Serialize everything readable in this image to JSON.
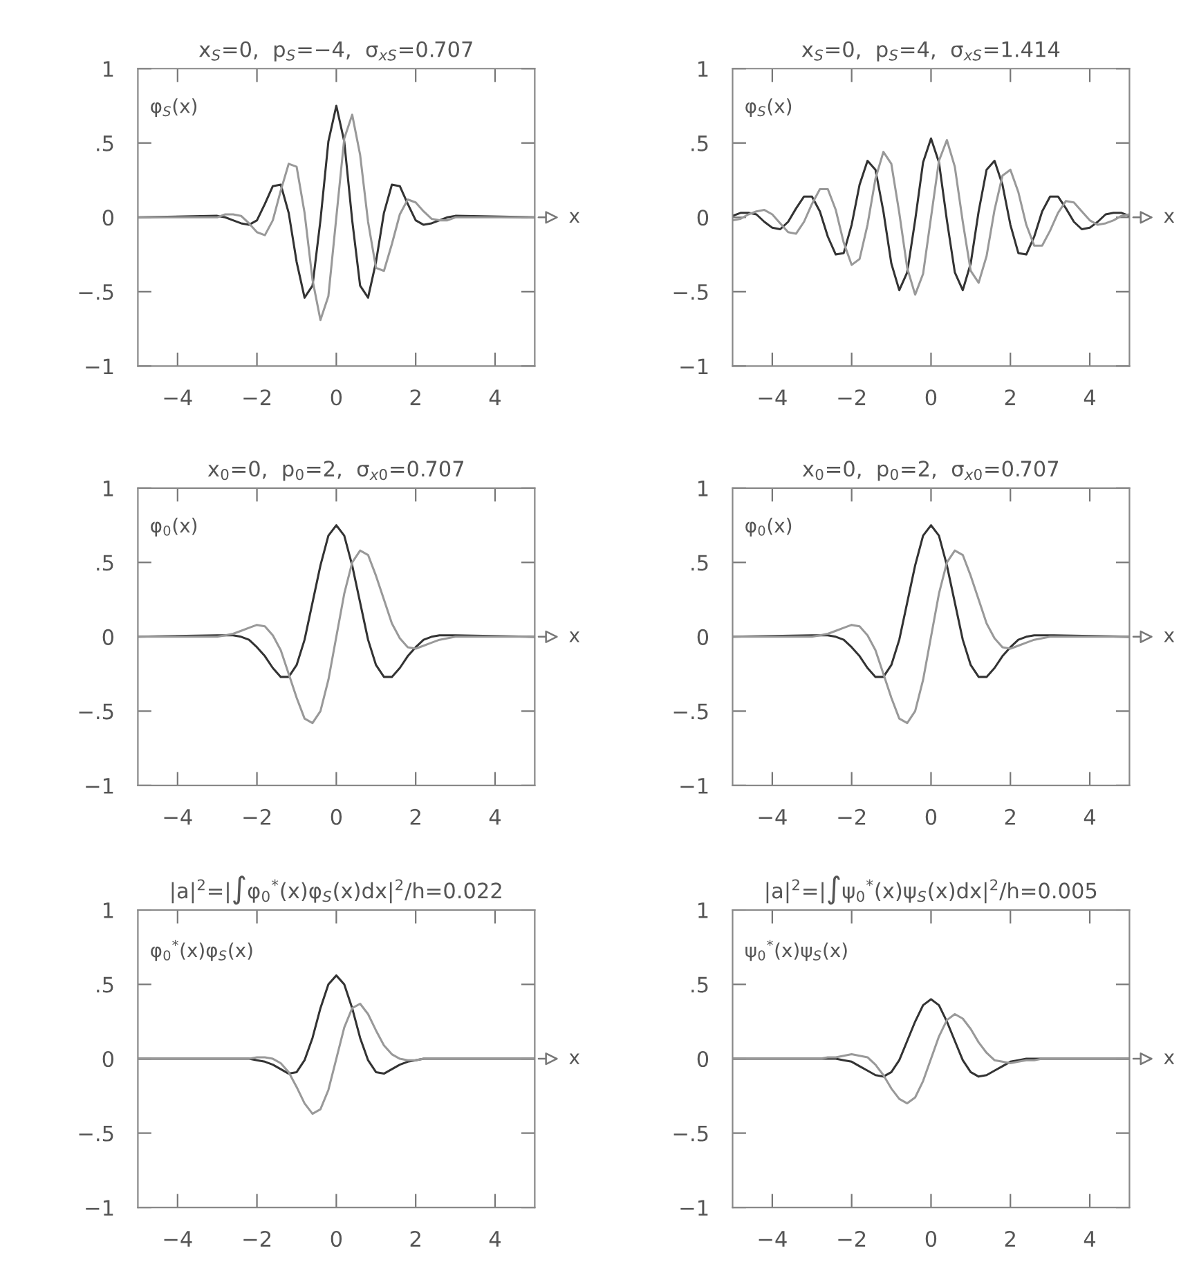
{
  "chart_data": [
    {
      "type": "line",
      "title": "x$_{S}$=0,  p$_{S}$=−4,  σ$_{xS}$=0.707",
      "xlabel": "x",
      "annotations": [
        "φ$_{S}$(x)"
      ],
      "xlim": [
        -5,
        5
      ],
      "ylim": [
        -1,
        1
      ],
      "xticks": [
        -4,
        -2,
        0,
        2,
        4
      ],
      "yticks": [
        {
          "value": -1,
          "label": "−1"
        },
        {
          "value": -0.5,
          "label": "−.5"
        },
        0,
        {
          "value": 0.5,
          "label": ".5"
        },
        1
      ],
      "x": [
        -5,
        -3,
        -2.8,
        -2.6,
        -2.4,
        -2.2,
        -2,
        -1.8,
        -1.6,
        -1.4,
        -1.2,
        -1,
        -0.8,
        -0.6,
        -0.4,
        -0.2,
        0,
        0.2,
        0.4,
        0.6,
        0.8,
        1,
        1.2,
        1.4,
        1.6,
        1.8,
        2,
        2.2,
        2.4,
        2.6,
        2.8,
        3,
        5
      ],
      "series": [
        {
          "color": "#333333",
          "values": [
            0,
            0.01,
            0,
            -0.02,
            -0.04,
            -0.05,
            -0.02,
            0.09,
            0.21,
            0.22,
            0.03,
            -0.3,
            -0.54,
            -0.46,
            -0.02,
            0.51,
            0.75,
            0.51,
            -0.02,
            -0.46,
            -0.54,
            -0.3,
            0.03,
            0.22,
            0.21,
            0.09,
            -0.02,
            -0.05,
            -0.04,
            -0.02,
            0,
            0.01,
            0
          ]
        },
        {
          "color": "#999999",
          "values": [
            0,
            0,
            0.02,
            0.02,
            0.01,
            -0.04,
            -0.1,
            -0.12,
            -0.02,
            0.18,
            0.36,
            0.34,
            0.03,
            -0.42,
            -0.69,
            -0.53,
            0,
            0.53,
            0.69,
            0.42,
            -0.03,
            -0.34,
            -0.36,
            -0.18,
            0.02,
            0.12,
            0.1,
            0.04,
            -0.01,
            -0.02,
            -0.02,
            0,
            0
          ]
        }
      ]
    },
    {
      "type": "line",
      "title": "x$_{S}$=0,  p$_{S}$=4,  σ$_{xS}$=1.414",
      "xlabel": "x",
      "annotations": [
        "φ$_{S}$(x)"
      ],
      "xlim": [
        -5,
        5
      ],
      "ylim": [
        -1,
        1
      ],
      "xticks": [
        -4,
        -2,
        0,
        2,
        4
      ],
      "yticks": [
        {
          "value": -1,
          "label": "−1"
        },
        {
          "value": -0.5,
          "label": "−.5"
        },
        0,
        {
          "value": 0.5,
          "label": ".5"
        },
        1
      ],
      "x": [
        -5,
        -4.8,
        -4.6,
        -4.4,
        -4.2,
        -4,
        -3.8,
        -3.6,
        -3.4,
        -3.2,
        -3,
        -2.8,
        -2.6,
        -2.4,
        -2.2,
        -2,
        -1.8,
        -1.6,
        -1.4,
        -1.2,
        -1,
        -0.8,
        -0.6,
        -0.4,
        -0.2,
        0,
        0.2,
        0.4,
        0.6,
        0.8,
        1,
        1.2,
        1.4,
        1.6,
        1.8,
        2,
        2.2,
        2.4,
        2.6,
        2.8,
        3,
        3.2,
        3.4,
        3.6,
        3.8,
        4,
        4.2,
        4.4,
        4.6,
        4.8,
        5
      ],
      "series": [
        {
          "color": "#333333",
          "values": [
            0.01,
            0.03,
            0.03,
            0.02,
            -0.03,
            -0.07,
            -0.08,
            -0.03,
            0.06,
            0.14,
            0.14,
            0.04,
            -0.13,
            -0.25,
            -0.24,
            -0.05,
            0.22,
            0.38,
            0.32,
            0.04,
            -0.31,
            -0.49,
            -0.37,
            -0.02,
            0.37,
            0.53,
            0.37,
            -0.02,
            -0.37,
            -0.49,
            -0.31,
            0.04,
            0.32,
            0.38,
            0.22,
            -0.05,
            -0.24,
            -0.25,
            -0.13,
            0.04,
            0.14,
            0.14,
            0.06,
            -0.03,
            -0.08,
            -0.07,
            -0.03,
            0.02,
            0.03,
            0.03,
            0.01
          ]
        },
        {
          "color": "#999999",
          "values": [
            -0.02,
            -0.01,
            0.02,
            0.04,
            0.05,
            0.02,
            -0.04,
            -0.1,
            -0.11,
            -0.03,
            0.09,
            0.19,
            0.19,
            0.05,
            -0.17,
            -0.32,
            -0.28,
            -0.05,
            0.26,
            0.44,
            0.36,
            0.03,
            -0.34,
            -0.52,
            -0.38,
            0,
            0.38,
            0.52,
            0.34,
            -0.03,
            -0.36,
            -0.44,
            -0.26,
            0.05,
            0.28,
            0.32,
            0.17,
            -0.05,
            -0.19,
            -0.19,
            -0.09,
            0.03,
            0.11,
            0.1,
            0.04,
            -0.02,
            -0.05,
            -0.04,
            -0.02,
            0.01,
            0.02
          ]
        }
      ]
    },
    {
      "type": "line",
      "title": "x$_{0}$=0,  p$_{0}$=2,  σ$_{x0}$=0.707",
      "xlabel": "x",
      "annotations": [
        "φ$_{0}$(x)"
      ],
      "xlim": [
        -5,
        5
      ],
      "ylim": [
        -1,
        1
      ],
      "xticks": [
        -4,
        -2,
        0,
        2,
        4
      ],
      "yticks": [
        {
          "value": -1,
          "label": "−1"
        },
        {
          "value": -0.5,
          "label": "−.5"
        },
        0,
        {
          "value": 0.5,
          "label": ".5"
        },
        1
      ],
      "x": [
        -5,
        -3,
        -2.8,
        -2.6,
        -2.4,
        -2.2,
        -2,
        -1.8,
        -1.6,
        -1.4,
        -1.2,
        -1,
        -0.8,
        -0.6,
        -0.4,
        -0.2,
        0,
        0.2,
        0.4,
        0.6,
        0.8,
        1,
        1.2,
        1.4,
        1.6,
        1.8,
        2,
        2.2,
        2.4,
        2.6,
        2.8,
        3,
        5
      ],
      "series": [
        {
          "color": "#333333",
          "values": [
            0,
            0.01,
            0.01,
            0.01,
            0,
            -0.02,
            -0.07,
            -0.13,
            -0.21,
            -0.27,
            -0.27,
            -0.19,
            -0.02,
            0.23,
            0.48,
            0.68,
            0.75,
            0.68,
            0.48,
            0.23,
            -0.02,
            -0.19,
            -0.27,
            -0.27,
            -0.21,
            -0.13,
            -0.07,
            -0.02,
            0,
            0.01,
            0.01,
            0.01,
            0
          ]
        },
        {
          "color": "#999999",
          "values": [
            0,
            0,
            0.01,
            0.02,
            0.04,
            0.06,
            0.08,
            0.07,
            0.01,
            -0.09,
            -0.25,
            -0.41,
            -0.55,
            -0.58,
            -0.5,
            -0.29,
            0,
            0.29,
            0.5,
            0.58,
            0.55,
            0.41,
            0.25,
            0.09,
            -0.01,
            -0.07,
            -0.08,
            -0.06,
            -0.04,
            -0.02,
            -0.01,
            0,
            0
          ]
        }
      ]
    },
    {
      "type": "line",
      "title": "x$_{0}$=0,  p$_{0}$=2,  σ$_{x0}$=0.707",
      "xlabel": "x",
      "annotations": [
        "φ$_{0}$(x)"
      ],
      "xlim": [
        -5,
        5
      ],
      "ylim": [
        -1,
        1
      ],
      "xticks": [
        -4,
        -2,
        0,
        2,
        4
      ],
      "yticks": [
        {
          "value": -1,
          "label": "−1"
        },
        {
          "value": -0.5,
          "label": "−.5"
        },
        0,
        {
          "value": 0.5,
          "label": ".5"
        },
        1
      ],
      "x": [
        -5,
        -3,
        -2.8,
        -2.6,
        -2.4,
        -2.2,
        -2,
        -1.8,
        -1.6,
        -1.4,
        -1.2,
        -1,
        -0.8,
        -0.6,
        -0.4,
        -0.2,
        0,
        0.2,
        0.4,
        0.6,
        0.8,
        1,
        1.2,
        1.4,
        1.6,
        1.8,
        2,
        2.2,
        2.4,
        2.6,
        2.8,
        3,
        5
      ],
      "series": [
        {
          "color": "#333333",
          "values": [
            0,
            0.01,
            0.01,
            0.01,
            0,
            -0.02,
            -0.07,
            -0.13,
            -0.21,
            -0.27,
            -0.27,
            -0.19,
            -0.02,
            0.23,
            0.48,
            0.68,
            0.75,
            0.68,
            0.48,
            0.23,
            -0.02,
            -0.19,
            -0.27,
            -0.27,
            -0.21,
            -0.13,
            -0.07,
            -0.02,
            0,
            0.01,
            0.01,
            0.01,
            0
          ]
        },
        {
          "color": "#999999",
          "values": [
            0,
            0,
            0.01,
            0.02,
            0.04,
            0.06,
            0.08,
            0.07,
            0.01,
            -0.09,
            -0.25,
            -0.41,
            -0.55,
            -0.58,
            -0.5,
            -0.29,
            0,
            0.29,
            0.5,
            0.58,
            0.55,
            0.41,
            0.25,
            0.09,
            -0.01,
            -0.07,
            -0.08,
            -0.06,
            -0.04,
            -0.02,
            -0.01,
            0,
            0
          ]
        }
      ]
    },
    {
      "type": "line",
      "title": "|a|$^{2}$=|∫φ$_{0}$$^{*}$(x)φ$_{S}$(x)dx|$^{2}$/h=0.022",
      "xlabel": "x",
      "annotations": [
        "φ$_{0}$$^{*}$(x)φ$_{S}$(x)"
      ],
      "xlim": [
        -5,
        5
      ],
      "ylim": [
        -1,
        1
      ],
      "xticks": [
        -4,
        -2,
        0,
        2,
        4
      ],
      "yticks": [
        {
          "value": -1,
          "label": "−1"
        },
        {
          "value": -0.5,
          "label": "−.5"
        },
        0,
        {
          "value": 0.5,
          "label": ".5"
        },
        1
      ],
      "x": [
        -5,
        -3,
        -2.8,
        -2.6,
        -2.4,
        -2.2,
        -2,
        -1.8,
        -1.6,
        -1.4,
        -1.2,
        -1,
        -0.8,
        -0.6,
        -0.4,
        -0.2,
        0,
        0.2,
        0.4,
        0.6,
        0.8,
        1,
        1.2,
        1.4,
        1.6,
        1.8,
        2,
        2.2,
        2.4,
        2.6,
        2.8,
        3,
        5
      ],
      "series": [
        {
          "color": "#333333",
          "values": [
            0,
            0,
            0,
            0,
            0,
            0,
            -0.01,
            -0.02,
            -0.04,
            -0.07,
            -0.1,
            -0.09,
            -0.01,
            0.14,
            0.34,
            0.5,
            0.56,
            0.5,
            0.34,
            0.14,
            -0.01,
            -0.09,
            -0.1,
            -0.07,
            -0.04,
            -0.02,
            -0.01,
            0,
            0,
            0,
            0,
            0,
            0
          ]
        },
        {
          "color": "#999999",
          "values": [
            0,
            0,
            0,
            0,
            0,
            0,
            0.01,
            0.01,
            0,
            -0.03,
            -0.09,
            -0.19,
            -0.3,
            -0.37,
            -0.34,
            -0.21,
            0,
            0.21,
            0.34,
            0.37,
            0.3,
            0.19,
            0.09,
            0.03,
            0,
            -0.01,
            -0.01,
            0,
            0,
            0,
            0,
            0,
            0
          ]
        }
      ]
    },
    {
      "type": "line",
      "title": "|a|$^{2}$=|∫ψ$_{0}$$^{*}$(x)ψ$_{S}$(x)dx|$^{2}$/h=0.005",
      "xlabel": "x",
      "annotations": [
        "ψ$_{0}$$^{*}$(x)ψ$_{S}$(x)"
      ],
      "xlim": [
        -5,
        5
      ],
      "ylim": [
        -1,
        1
      ],
      "xticks": [
        -4,
        -2,
        0,
        2,
        4
      ],
      "yticks": [
        {
          "value": -1,
          "label": "−1"
        },
        {
          "value": -0.5,
          "label": "−.5"
        },
        0,
        {
          "value": 0.5,
          "label": ".5"
        },
        1
      ],
      "x": [
        -5,
        -3,
        -2.8,
        -2.6,
        -2.4,
        -2.2,
        -2,
        -1.8,
        -1.6,
        -1.4,
        -1.2,
        -1,
        -0.8,
        -0.6,
        -0.4,
        -0.2,
        0,
        0.2,
        0.4,
        0.6,
        0.8,
        1,
        1.2,
        1.4,
        1.6,
        1.8,
        2,
        2.2,
        2.4,
        2.6,
        2.8,
        3,
        5
      ],
      "series": [
        {
          "color": "#333333",
          "values": [
            0,
            0,
            0,
            0,
            0,
            -0.01,
            -0.02,
            -0.05,
            -0.08,
            -0.11,
            -0.12,
            -0.09,
            -0.01,
            0.12,
            0.25,
            0.36,
            0.4,
            0.36,
            0.25,
            0.12,
            -0.01,
            -0.09,
            -0.12,
            -0.11,
            -0.08,
            -0.05,
            -0.02,
            -0.01,
            0,
            0,
            0,
            0,
            0
          ]
        },
        {
          "color": "#999999",
          "values": [
            0,
            0,
            0,
            0.01,
            0.01,
            0.02,
            0.03,
            0.02,
            0.01,
            -0.04,
            -0.11,
            -0.2,
            -0.27,
            -0.3,
            -0.26,
            -0.15,
            0,
            0.15,
            0.26,
            0.3,
            0.27,
            0.2,
            0.11,
            0.04,
            -0.01,
            -0.02,
            -0.03,
            -0.02,
            -0.01,
            -0.01,
            0,
            0,
            0
          ]
        }
      ]
    }
  ]
}
